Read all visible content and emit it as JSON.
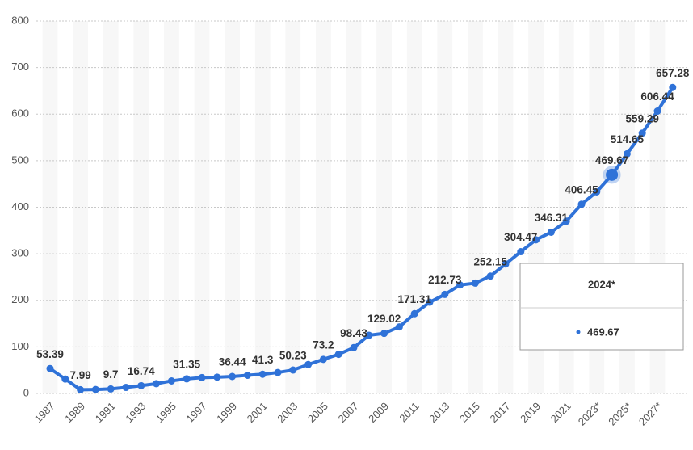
{
  "chart_data": {
    "type": "line",
    "categories": [
      "1987",
      null,
      "1989",
      null,
      "1991",
      null,
      "1993",
      null,
      "1995",
      null,
      "1997",
      null,
      "1999",
      null,
      "2001",
      null,
      "2003",
      null,
      "2005",
      null,
      "2007",
      null,
      "2009",
      null,
      "2011",
      null,
      "2013",
      null,
      "2015",
      null,
      "2017",
      null,
      "2019",
      null,
      "2021",
      null,
      "2023*",
      null,
      "2025*",
      null,
      "2027*",
      null
    ],
    "values": [
      53.39,
      31,
      7.99,
      8.5,
      9.7,
      13,
      16.74,
      21,
      27,
      31.35,
      34,
      35,
      36.44,
      39,
      41.3,
      45,
      50.23,
      62,
      73.2,
      84,
      98.43,
      125,
      129.02,
      143,
      171.31,
      196,
      212.73,
      233,
      237,
      252.15,
      278,
      304.47,
      330,
      346.31,
      370,
      406.45,
      433,
      469.67,
      514.65,
      559.29,
      606.44,
      657.28
    ],
    "value_labels": [
      "53.39",
      null,
      "7.99",
      null,
      "9.7",
      null,
      "16.74",
      null,
      null,
      "31.35",
      null,
      null,
      "36.44",
      null,
      "41.3",
      null,
      "50.23",
      null,
      "73.2",
      null,
      "98.43",
      null,
      "129.02",
      null,
      "171.31",
      null,
      "212.73",
      null,
      null,
      "252.15",
      null,
      "304.47",
      null,
      "346.31",
      null,
      "406.45",
      null,
      "469.67",
      "514.65",
      "559.29",
      "606.44",
      "657.28"
    ],
    "color": "#2f72d8",
    "ylim": [
      0,
      800
    ],
    "yticks": [
      0,
      100,
      200,
      300,
      400,
      500,
      600,
      700,
      800
    ],
    "grid": true,
    "tooltip": {
      "title": "2024*",
      "value": 469.67
    }
  }
}
